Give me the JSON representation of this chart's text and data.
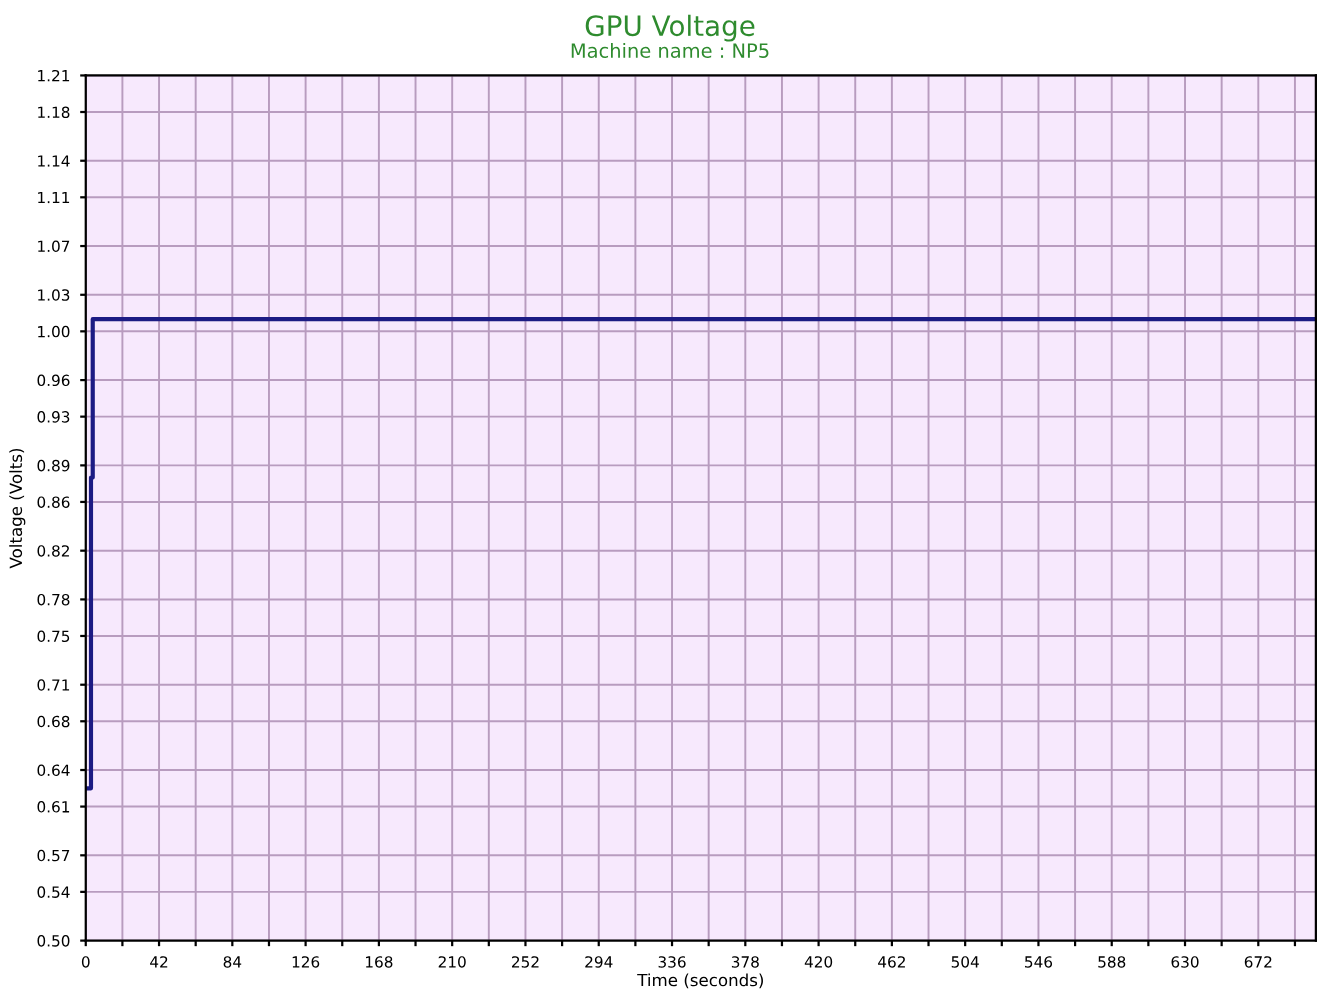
{
  "chart_data": {
    "type": "step",
    "title": "GPU Voltage",
    "subtitle": "Machine name : NP5",
    "xlabel": "Time (seconds)",
    "ylabel": "Voltage (Volts)",
    "series": [
      {
        "color": "#1c1c84",
        "x": [
          0,
          3,
          4,
          704
        ],
        "values": [
          0.625,
          0.88,
          1.01,
          1.01
        ]
      }
    ],
    "xlim": [
      0,
      705
    ],
    "xticks": [
      0,
      {
        "value": 21,
        "label": null
      },
      42,
      {
        "value": 63,
        "label": null
      },
      84,
      {
        "value": 105,
        "label": null
      },
      126,
      {
        "value": 147,
        "label": null
      },
      168,
      {
        "value": 189,
        "label": null
      },
      210,
      {
        "value": 231,
        "label": null
      },
      252,
      {
        "value": 273,
        "label": null
      },
      294,
      {
        "value": 315,
        "label": null
      },
      336,
      {
        "value": 357,
        "label": null
      },
      378,
      {
        "value": 399,
        "label": null
      },
      420,
      {
        "value": 441,
        "label": null
      },
      462,
      {
        "value": 483,
        "label": null
      },
      504,
      {
        "value": 525,
        "label": null
      },
      546,
      {
        "value": 567,
        "label": null
      },
      588,
      {
        "value": 609,
        "label": null
      },
      630,
      {
        "value": 651,
        "label": null
      },
      672,
      {
        "value": 693,
        "label": null
      }
    ],
    "ylim": [
      0.5,
      1.21
    ],
    "yticks": [
      {
        "value": 0.5,
        "label": "0.50"
      },
      0.54,
      0.57,
      0.61,
      0.64,
      0.68,
      0.71,
      0.75,
      0.78,
      0.82,
      0.86,
      0.89,
      0.93,
      0.96,
      {
        "value": 1.0,
        "label": "1.00"
      },
      1.03,
      1.07,
      1.11,
      1.14,
      1.18,
      1.21
    ],
    "grid": true,
    "marker": "none",
    "line_style": "solid"
  }
}
